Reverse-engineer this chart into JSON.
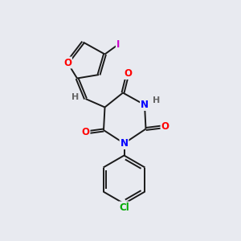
{
  "bg_color": "#e8eaf0",
  "bond_color": "#1a1a1a",
  "atom_colors": {
    "O": "#ff0000",
    "N": "#0000ff",
    "Cl": "#00aa00",
    "I": "#cc00cc",
    "H": "#666666",
    "C": "#1a1a1a"
  },
  "figsize": [
    3.0,
    3.0
  ],
  "dpi": 100,
  "lw": 1.4,
  "fontsize": 8.5
}
